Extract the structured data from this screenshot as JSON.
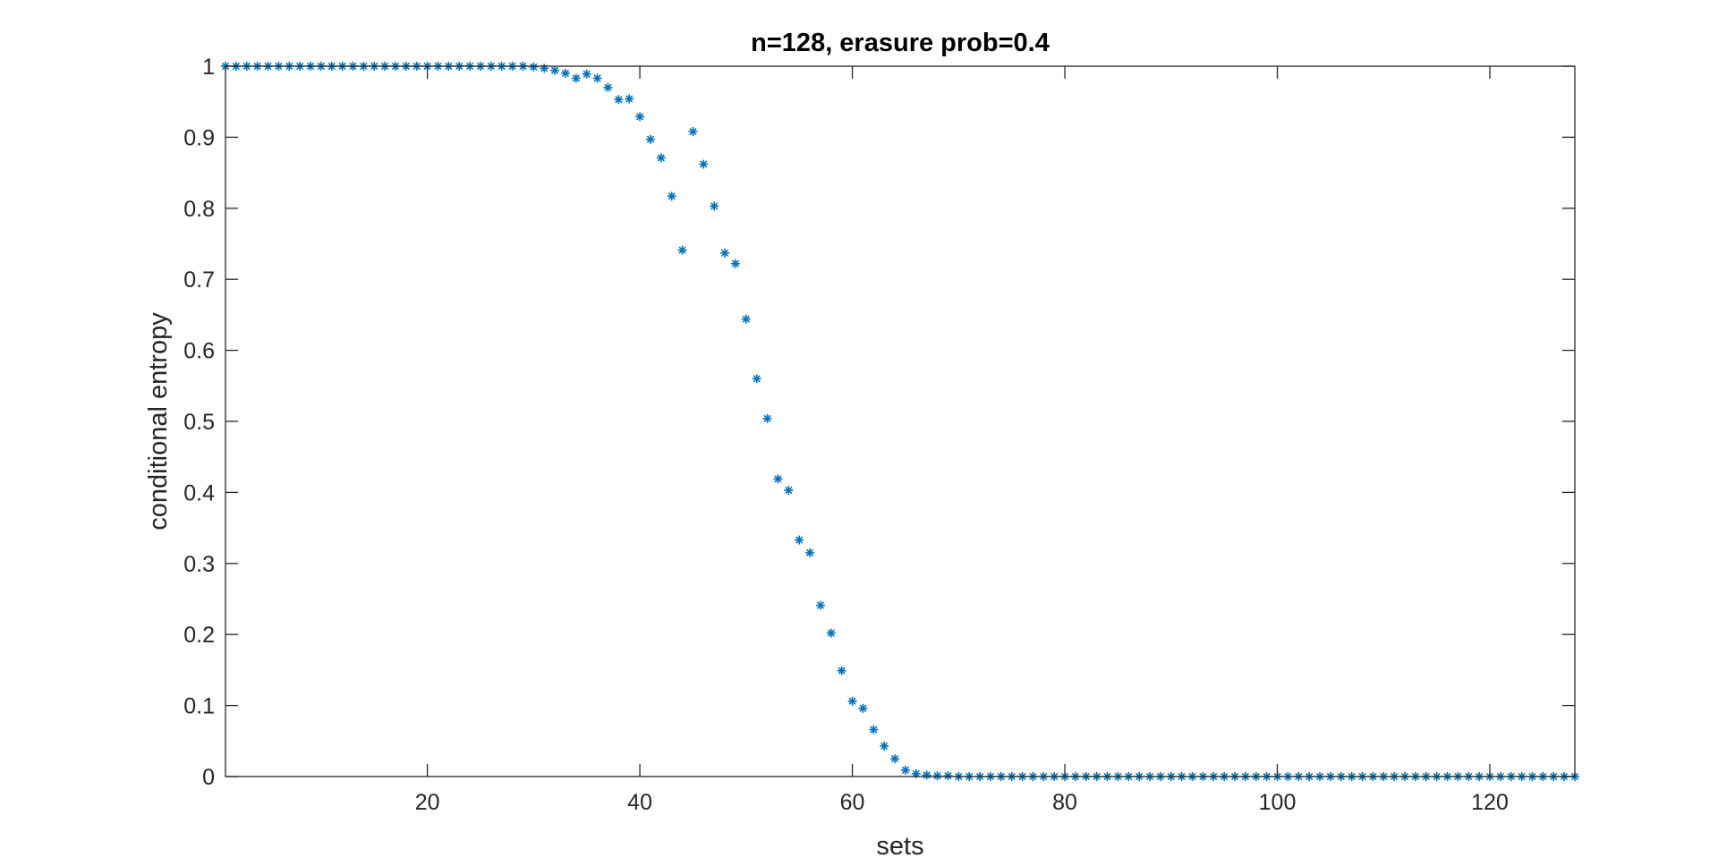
{
  "chart_data": {
    "type": "scatter",
    "title": "n=128, erasure prob=0.4",
    "xlabel": "sets",
    "ylabel": "conditional entropy",
    "xlim": [
      1,
      128
    ],
    "ylim": [
      0,
      1
    ],
    "xticks": [
      20,
      40,
      60,
      80,
      100,
      120
    ],
    "yticks": [
      0,
      0.1,
      0.2,
      0.3,
      0.4,
      0.5,
      0.6,
      0.7,
      0.8,
      0.9,
      1
    ],
    "ytick_labels": [
      "0",
      "0.1",
      "0.2",
      "0.3",
      "0.4",
      "0.5",
      "0.6",
      "0.7",
      "0.8",
      "0.9",
      "1"
    ],
    "marker": "asterisk",
    "color": "#0072BD",
    "grid": false,
    "box": true,
    "x": [
      1,
      2,
      3,
      4,
      5,
      6,
      7,
      8,
      9,
      10,
      11,
      12,
      13,
      14,
      15,
      16,
      17,
      18,
      19,
      20,
      21,
      22,
      23,
      24,
      25,
      26,
      27,
      28,
      29,
      30,
      31,
      32,
      33,
      34,
      35,
      36,
      37,
      38,
      39,
      40,
      41,
      42,
      43,
      44,
      45,
      46,
      47,
      48,
      49,
      50,
      51,
      52,
      53,
      54,
      55,
      56,
      57,
      58,
      59,
      60,
      61,
      62,
      63,
      64,
      65,
      66,
      67,
      68,
      69,
      70,
      71,
      72,
      73,
      74,
      75,
      76,
      77,
      78,
      79,
      80,
      81,
      82,
      83,
      84,
      85,
      86,
      87,
      88,
      89,
      90,
      91,
      92,
      93,
      94,
      95,
      96,
      97,
      98,
      99,
      100,
      101,
      102,
      103,
      104,
      105,
      106,
      107,
      108,
      109,
      110,
      111,
      112,
      113,
      114,
      115,
      116,
      117,
      118,
      119,
      120,
      121,
      122,
      123,
      124,
      125,
      126,
      127,
      128
    ],
    "y": [
      1,
      1,
      1,
      1,
      1,
      1,
      1,
      1,
      1,
      1,
      1,
      1,
      1,
      1,
      1,
      1,
      1,
      1,
      1,
      1,
      1,
      1,
      1,
      1,
      1,
      1,
      1,
      1,
      1,
      0.999,
      0.997,
      0.994,
      0.99,
      0.983,
      0.989,
      0.983,
      0.97,
      0.953,
      0.954,
      0.929,
      0.897,
      0.871,
      0.817,
      0.741,
      0.908,
      0.862,
      0.803,
      0.737,
      0.722,
      0.644,
      0.56,
      0.504,
      0.419,
      0.403,
      0.333,
      0.315,
      0.241,
      0.202,
      0.149,
      0.106,
      0.096,
      0.066,
      0.043,
      0.025,
      0.009,
      0.004,
      0.002,
      0.001,
      0.001,
      0,
      0,
      0,
      0,
      0,
      0,
      0,
      0,
      0,
      0,
      0,
      0,
      0,
      0,
      0,
      0,
      0,
      0,
      0,
      0,
      0,
      0,
      0,
      0,
      0,
      0,
      0,
      0,
      0,
      0,
      0,
      0,
      0,
      0,
      0,
      0,
      0,
      0,
      0,
      0,
      0,
      0,
      0,
      0,
      0,
      0,
      0,
      0,
      0,
      0,
      0,
      0,
      0,
      0,
      0,
      0,
      0,
      0,
      0
    ]
  }
}
